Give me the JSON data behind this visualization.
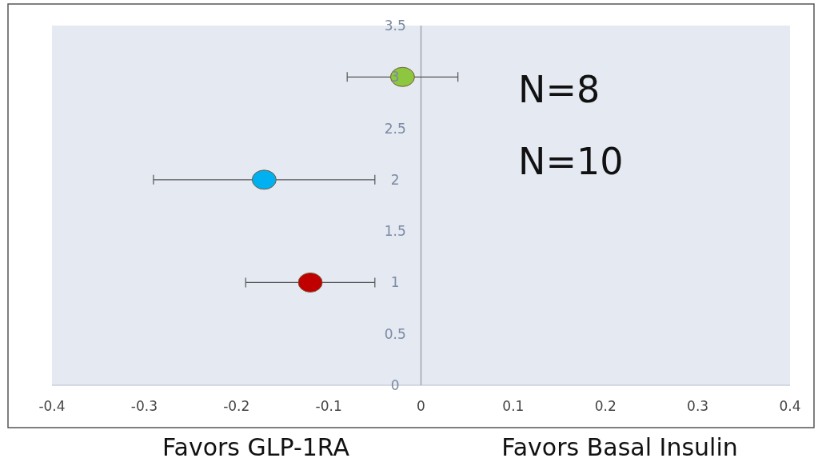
{
  "chart_data": {
    "type": "scatter",
    "x": [
      -0.02,
      -0.17,
      -0.12
    ],
    "values": [
      3,
      2,
      1
    ],
    "xerrors": [
      [
        -0.08,
        0.04
      ],
      [
        -0.29,
        -0.05
      ],
      [
        -0.19,
        -0.05
      ]
    ],
    "colors": [
      "#8dc63f",
      "#00b0f0",
      "#c00000"
    ],
    "marker": "circle",
    "xlim": [
      -0.4,
      0.4
    ],
    "xticks": [
      -0.4,
      -0.3,
      -0.2,
      -0.1,
      0,
      0.1,
      0.2,
      0.3,
      0.4
    ],
    "ylim": [
      0,
      3.5
    ],
    "yticks": [
      0,
      0.5,
      1,
      1.5,
      2,
      2.5,
      3,
      3.5
    ],
    "annotations": [
      "N=8",
      "N=10",
      "Favors GLP-1RA",
      "Favors Basal Insulin"
    ],
    "grid": false
  }
}
